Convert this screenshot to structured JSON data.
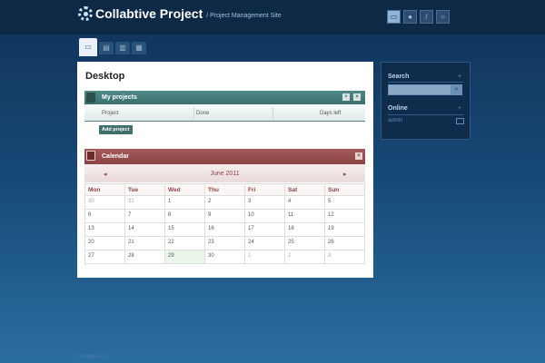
{
  "header": {
    "title": "Collabtive Project",
    "subtitle": "/ Project Management Site",
    "icons": [
      "desktop-icon",
      "user-icon",
      "wrench-icon",
      "power-icon"
    ]
  },
  "tabs": [
    "desktop-tab",
    "messages-tab",
    "files-tab",
    "tasks-tab"
  ],
  "desktop": {
    "title": "Desktop",
    "projects": {
      "title": "My projects",
      "columns": [
        "Project",
        "Done",
        "Days left"
      ],
      "add_button": "Add project",
      "add_symbol": "+",
      "close_symbol": "×"
    },
    "calendar": {
      "title": "Calendar",
      "month": "June 2011",
      "prev": "◂",
      "next": "▸",
      "close_symbol": "×",
      "weekdays": [
        "Mon",
        "Tue",
        "Wed",
        "Thu",
        "Fri",
        "Sat",
        "Sun"
      ],
      "weeks": [
        [
          "30",
          "31",
          "1",
          "2",
          "3",
          "4",
          "5"
        ],
        [
          "6",
          "7",
          "8",
          "9",
          "10",
          "11",
          "12"
        ],
        [
          "13",
          "14",
          "15",
          "16",
          "17",
          "18",
          "19"
        ],
        [
          "20",
          "21",
          "22",
          "23",
          "24",
          "25",
          "26"
        ],
        [
          "27",
          "28",
          "29",
          "30",
          "1",
          "2",
          "3"
        ]
      ]
    }
  },
  "sidebar": {
    "search_title": "Search",
    "search_placeholder": "",
    "online_title": "Online",
    "online_user": "admin",
    "plus": "+"
  },
  "footer": "Collabtive 0.7"
}
